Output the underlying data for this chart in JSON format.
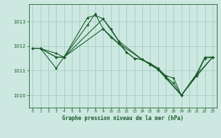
{
  "title": "Graphe pression niveau de la mer (hPa)",
  "bg_color": "#cce8e0",
  "grid_color": "#aacfc8",
  "line_color": "#1a5c2a",
  "xlim": [
    -0.5,
    23.5
  ],
  "ylim": [
    1009.5,
    1013.7
  ],
  "yticks": [
    1010,
    1011,
    1012,
    1013
  ],
  "xticks": [
    0,
    1,
    2,
    3,
    4,
    5,
    6,
    7,
    8,
    9,
    10,
    11,
    12,
    13,
    14,
    15,
    16,
    17,
    18,
    19,
    20,
    21,
    22,
    23
  ],
  "series": [
    {
      "x": [
        0,
        1,
        3,
        4,
        7,
        8,
        9,
        10,
        11,
        12,
        13,
        14,
        15,
        16,
        17,
        18,
        19,
        21,
        22,
        23
      ],
      "y": [
        1011.9,
        1011.9,
        1011.7,
        1011.55,
        1013.15,
        1013.25,
        1013.1,
        1012.7,
        1012.2,
        1011.75,
        1011.5,
        1011.45,
        1011.3,
        1011.1,
        1010.8,
        1010.7,
        1010.0,
        1010.9,
        1011.55,
        1011.55
      ]
    },
    {
      "x": [
        0,
        1,
        3,
        4,
        7,
        8,
        9,
        10,
        11,
        12,
        13,
        14,
        15,
        16,
        17,
        18,
        19,
        21,
        22,
        23
      ],
      "y": [
        1011.9,
        1011.9,
        1011.55,
        1011.55,
        1012.85,
        1013.3,
        1012.7,
        1012.35,
        1012.1,
        1011.75,
        1011.5,
        1011.45,
        1011.25,
        1011.05,
        1010.75,
        1010.5,
        1010.0,
        1010.85,
        1011.5,
        1011.55
      ]
    },
    {
      "x": [
        1,
        3,
        4,
        9,
        11,
        14,
        16,
        17,
        19,
        21,
        23
      ],
      "y": [
        1011.9,
        1011.1,
        1011.55,
        1013.1,
        1012.2,
        1011.45,
        1011.1,
        1010.75,
        1010.0,
        1010.8,
        1011.55
      ]
    },
    {
      "x": [
        1,
        3,
        4,
        9,
        11,
        14,
        16,
        17,
        19,
        21,
        23
      ],
      "y": [
        1011.9,
        1011.55,
        1011.55,
        1012.7,
        1012.1,
        1011.45,
        1011.05,
        1010.7,
        1010.0,
        1010.85,
        1011.55
      ]
    }
  ]
}
